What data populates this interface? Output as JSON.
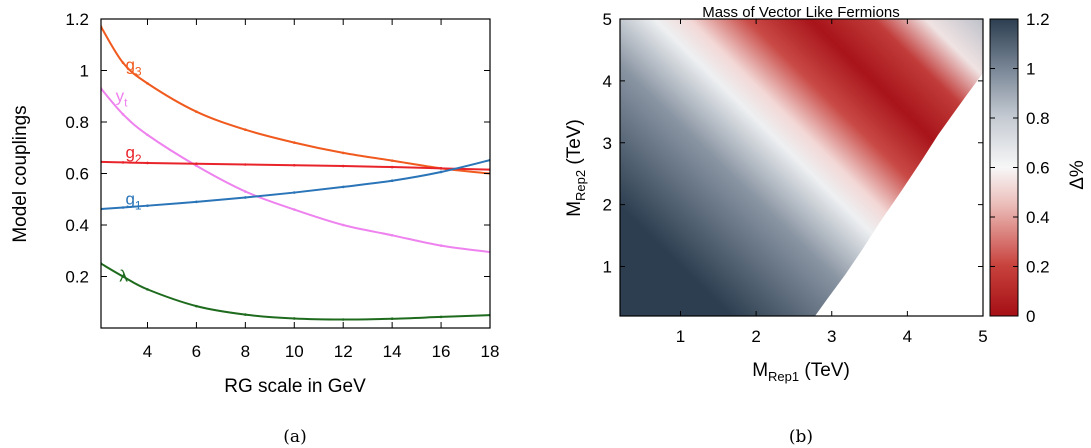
{
  "chart_data": [
    {
      "type": "line",
      "caption": "(a)",
      "title": "",
      "xlabel": "RG scale in GeV",
      "ylabel": "Model couplings",
      "xlim": [
        2.1,
        18
      ],
      "ylim": [
        0,
        1.2
      ],
      "xticks": [
        4,
        6,
        8,
        10,
        12,
        14,
        16,
        18
      ],
      "yticks": [
        0.2,
        0.4,
        0.6,
        0.8,
        1,
        1.2
      ],
      "x": [
        2.1,
        3,
        4,
        6,
        8,
        10,
        12,
        14,
        16,
        18
      ],
      "series": [
        {
          "name": "g3",
          "label_main": "g",
          "label_sub": "3",
          "color": "#f05a1e",
          "label_at": [
            3.1,
            1.0
          ],
          "values": [
            1.17,
            1.03,
            0.95,
            0.84,
            0.77,
            0.72,
            0.68,
            0.65,
            0.62,
            0.6
          ]
        },
        {
          "name": "yt",
          "label_main": "y",
          "label_sub": "t",
          "color": "#ee82ee",
          "label_at": [
            2.7,
            0.88
          ],
          "values": [
            0.93,
            0.83,
            0.75,
            0.63,
            0.53,
            0.46,
            0.4,
            0.36,
            0.32,
            0.295
          ]
        },
        {
          "name": "g2",
          "label_main": "g",
          "label_sub": "2",
          "color": "#e8242a",
          "label_at": [
            3.1,
            0.66
          ],
          "values": [
            0.645,
            0.643,
            0.641,
            0.638,
            0.635,
            0.632,
            0.629,
            0.625,
            0.62,
            0.615
          ]
        },
        {
          "name": "g1",
          "label_main": "g",
          "label_sub": "1",
          "color": "#2a74b8",
          "label_at": [
            3.1,
            0.48
          ],
          "values": [
            0.462,
            0.468,
            0.475,
            0.49,
            0.507,
            0.526,
            0.548,
            0.572,
            0.606,
            0.652
          ]
        },
        {
          "name": "λ",
          "label_main": "λ",
          "label_sub": "",
          "color": "#1e6b1e",
          "label_at": [
            2.85,
            0.18
          ],
          "values": [
            0.25,
            0.2,
            0.15,
            0.085,
            0.052,
            0.037,
            0.033,
            0.036,
            0.043,
            0.05
          ]
        }
      ]
    },
    {
      "type": "heatmap",
      "caption": "(b)",
      "title": "Mass of Vector Like Fermions",
      "xlabel_main": "M",
      "xlabel_sub": "Rep1",
      "xlabel_unit": " (TeV)",
      "ylabel_main": "M",
      "ylabel_sub": "Rep2",
      "ylabel_unit": " (TeV)",
      "xlim": [
        0.2,
        5
      ],
      "ylim": [
        0.2,
        5
      ],
      "xticks": [
        1,
        2,
        3,
        4,
        5
      ],
      "yticks": [
        1,
        2,
        3,
        4,
        5
      ],
      "colorbar": {
        "label": "Δ%",
        "range": [
          0,
          1.2
        ],
        "ticks": [
          "0",
          "0.2",
          "0.4",
          "0.6",
          "0.8",
          "1",
          "1.2"
        ],
        "colors": [
          "#a50f15",
          "#d6604d",
          "#f4e0e0",
          "#f7f7f7",
          "#c8cdd4",
          "#7c8896",
          "#2c3e50"
        ]
      }
    }
  ]
}
